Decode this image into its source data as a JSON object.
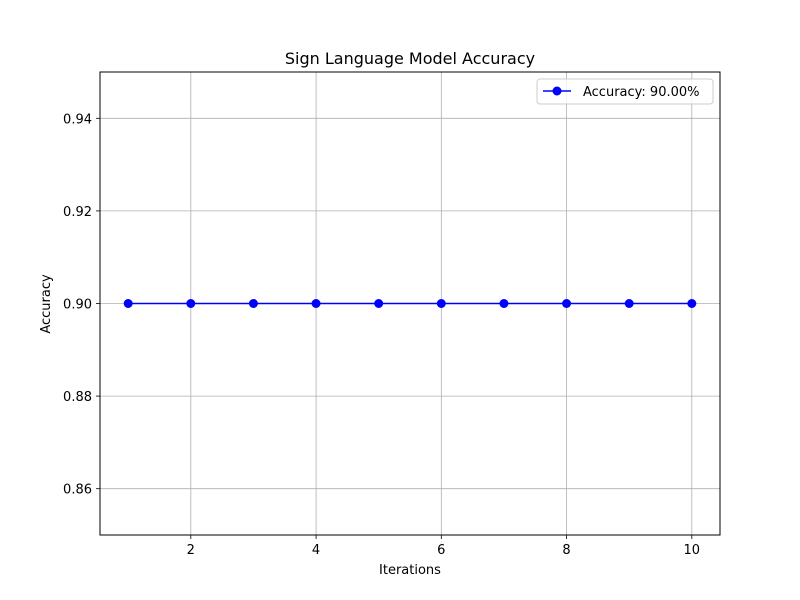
{
  "chart_data": {
    "type": "line",
    "title": "Sign Language Model Accuracy",
    "xlabel": "Iterations",
    "ylabel": "Accuracy",
    "x": [
      1,
      2,
      3,
      4,
      5,
      6,
      7,
      8,
      9,
      10
    ],
    "series": [
      {
        "name": "Accuracy: 90.00%",
        "values": [
          0.9,
          0.9,
          0.9,
          0.9,
          0.9,
          0.9,
          0.9,
          0.9,
          0.9,
          0.9
        ],
        "color": "#0000ff",
        "marker": "circle"
      }
    ],
    "xlim": [
      0.55,
      10.45
    ],
    "ylim": [
      0.85,
      0.95
    ],
    "xticks": [
      2,
      4,
      6,
      8,
      10
    ],
    "xtick_labels": [
      "2",
      "4",
      "6",
      "8",
      "10"
    ],
    "yticks": [
      0.86,
      0.88,
      0.9,
      0.92,
      0.94
    ],
    "ytick_labels": [
      "0.86",
      "0.88",
      "0.90",
      "0.92",
      "0.94"
    ],
    "grid": true,
    "legend_position": "top-right"
  }
}
